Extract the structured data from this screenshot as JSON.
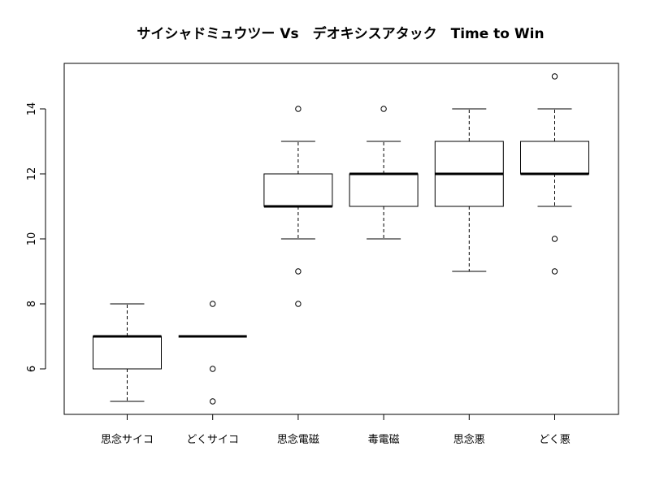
{
  "chart_data": {
    "type": "boxplot",
    "title": "サイシャドミュウツー Vs　デオキシスアタック　Time to Win",
    "xlabel": "",
    "ylabel": "",
    "ylim": [
      4.6,
      15.4
    ],
    "yticks": [
      6,
      8,
      10,
      12,
      14
    ],
    "ytick_labels": [
      "6",
      "8",
      "10",
      "12",
      "14"
    ],
    "grid": false,
    "legend": "none",
    "categories": [
      "思念サイコ",
      "どくサイコ",
      "思念電磁",
      "毒電磁",
      "思念悪",
      "どく悪"
    ],
    "boxes": [
      {
        "whisker_low": 5,
        "q1": 6,
        "median": 7,
        "q3": 7,
        "whisker_high": 8,
        "outliers": []
      },
      {
        "whisker_low": 7,
        "q1": 7,
        "median": 7,
        "q3": 7,
        "whisker_high": 7,
        "outliers": [
          5,
          6,
          8
        ]
      },
      {
        "whisker_low": 10,
        "q1": 11,
        "median": 11,
        "q3": 12,
        "whisker_high": 13,
        "outliers": [
          8,
          9,
          14
        ]
      },
      {
        "whisker_low": 10,
        "q1": 11,
        "median": 12,
        "q3": 12,
        "whisker_high": 13,
        "outliers": [
          14
        ]
      },
      {
        "whisker_low": 9,
        "q1": 11,
        "median": 12,
        "q3": 13,
        "whisker_high": 14,
        "outliers": []
      },
      {
        "whisker_low": 11,
        "q1": 12,
        "median": 12,
        "q3": 13,
        "whisker_high": 14,
        "outliers": [
          9,
          10,
          15
        ]
      }
    ]
  }
}
